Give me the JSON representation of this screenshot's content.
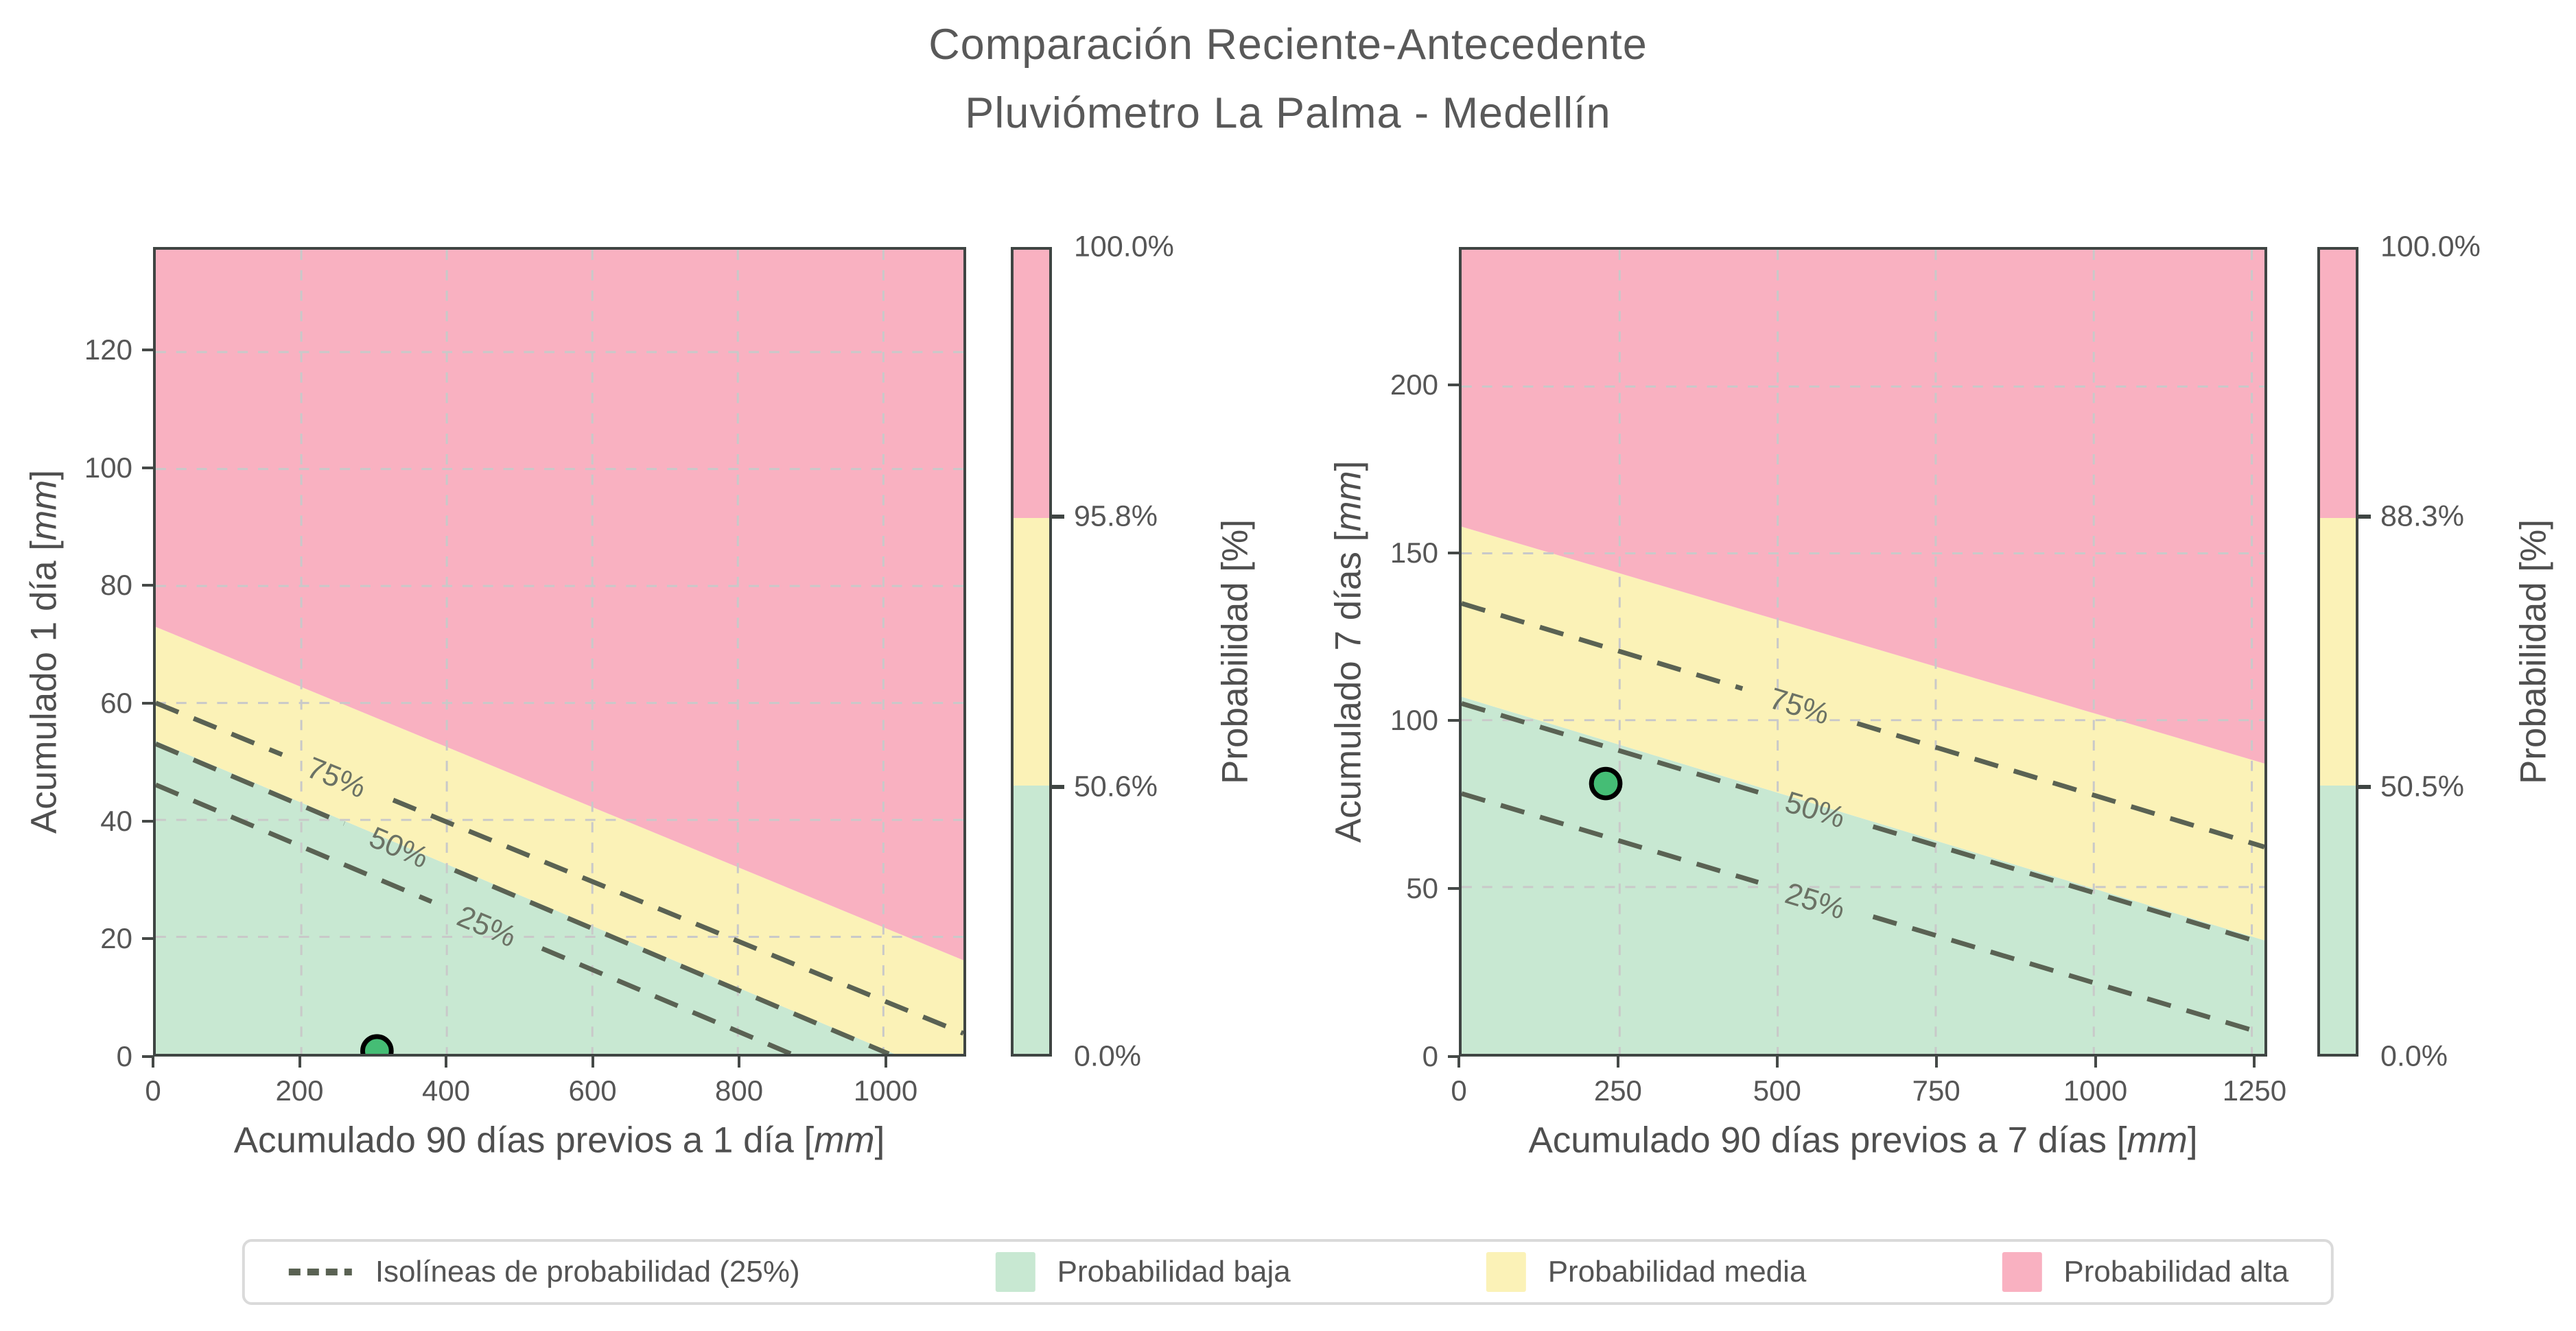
{
  "title": {
    "line1": "Comparación Reciente-Antecedente",
    "line2": "Pluviómetro La Palma - Medellín"
  },
  "colors": {
    "zone_low": "#c8e8d2",
    "zone_mid": "#fbf2b7",
    "zone_high": "#f9b1c1",
    "point_fill": "#45bd75",
    "point_stroke": "#000000",
    "isoline": "#5a6253",
    "grid": "#c9c9c9",
    "spine": "#3f4543",
    "text": "#565656",
    "legend_border": "#dadada"
  },
  "legend": {
    "items": [
      {
        "swatch": "dashed-line",
        "label": "Isolíneas de probabilidad (25%)"
      },
      {
        "swatch": "zone_low",
        "label": "Probabilidad baja"
      },
      {
        "swatch": "zone_mid",
        "label": "Probabilidad media"
      },
      {
        "swatch": "zone_high",
        "label": "Probabilidad alta"
      }
    ]
  },
  "chart_data": [
    {
      "type": "contour-zones-scatter",
      "panel": "left",
      "xlabel": {
        "prefix": "Acumulado 90 días previos a 1 día [",
        "unit": "mm",
        "suffix": "]"
      },
      "ylabel": {
        "prefix": "Acumulado 1 día [",
        "unit": "mm",
        "suffix": "]"
      },
      "xlim": [
        0,
        1110
      ],
      "ylim": [
        0,
        137.5
      ],
      "xticks": [
        0,
        200,
        400,
        600,
        800,
        1000
      ],
      "yticks": [
        0,
        20,
        40,
        60,
        80,
        100,
        120
      ],
      "grid": true,
      "zones": [
        {
          "name": "Probabilidad baja",
          "boundary": "below low_mid"
        },
        {
          "name": "Probabilidad media",
          "boundary": "between low_mid and mid_high"
        },
        {
          "name": "Probabilidad alta",
          "boundary": "above mid_high"
        }
      ],
      "zone_boundaries": {
        "low_mid": {
          "y_at_xmin": 53.5,
          "y_at_xmax": -5.0
        },
        "mid_high": {
          "y_at_xmin": 73.0,
          "y_at_xmax": 16.0
        }
      },
      "isolines": [
        {
          "label": "75%",
          "y_at_xmin": 60.0,
          "y_at_xmax": 3.5,
          "label_x": 250
        },
        {
          "label": "50%",
          "y_at_xmin": 53.0,
          "y_at_xmax": -5.4,
          "label_x": 335
        },
        {
          "label": "25%",
          "y_at_xmin": 46.0,
          "y_at_xmax": -12.5,
          "label_x": 455
        }
      ],
      "point": {
        "x": 304,
        "y": 0.5
      },
      "colorbar": {
        "title": "Probabilidad [%]",
        "tick_labels": [
          "100.0%",
          "95.8%",
          "50.6%",
          "0.0%"
        ]
      }
    },
    {
      "type": "contour-zones-scatter",
      "panel": "right",
      "xlabel": {
        "prefix": "Acumulado 90 días previos a 7 días [",
        "unit": "mm",
        "suffix": "]"
      },
      "ylabel": {
        "prefix": "Acumulado 7 días [",
        "unit": "mm",
        "suffix": "]"
      },
      "xlim": [
        0,
        1270
      ],
      "ylim": [
        0,
        241
      ],
      "xticks": [
        0,
        250,
        500,
        750,
        1000,
        1250
      ],
      "yticks": [
        0,
        50,
        100,
        150,
        200
      ],
      "grid": true,
      "zones": [
        {
          "name": "Probabilidad baja",
          "boundary": "below low_mid"
        },
        {
          "name": "Probabilidad media",
          "boundary": "between low_mid and mid_high"
        },
        {
          "name": "Probabilidad alta",
          "boundary": "above mid_high"
        }
      ],
      "zone_boundaries": {
        "low_mid": {
          "y_at_xmin": 107.0,
          "y_at_xmax": 34.0
        },
        "mid_high": {
          "y_at_xmin": 158.0,
          "y_at_xmax": 87.0
        }
      },
      "isolines": [
        {
          "label": "75%",
          "y_at_xmin": 135.0,
          "y_at_xmax": 62.0,
          "label_x": 535
        },
        {
          "label": "50%",
          "y_at_xmin": 105.0,
          "y_at_xmax": 33.0,
          "label_x": 560
        },
        {
          "label": "25%",
          "y_at_xmin": 78.0,
          "y_at_xmax": 6.0,
          "label_x": 560
        }
      ],
      "point": {
        "x": 228,
        "y": 81
      },
      "colorbar": {
        "title": "Probabilidad [%]",
        "tick_labels": [
          "100.0%",
          "88.3%",
          "50.5%",
          "0.0%"
        ]
      }
    }
  ]
}
